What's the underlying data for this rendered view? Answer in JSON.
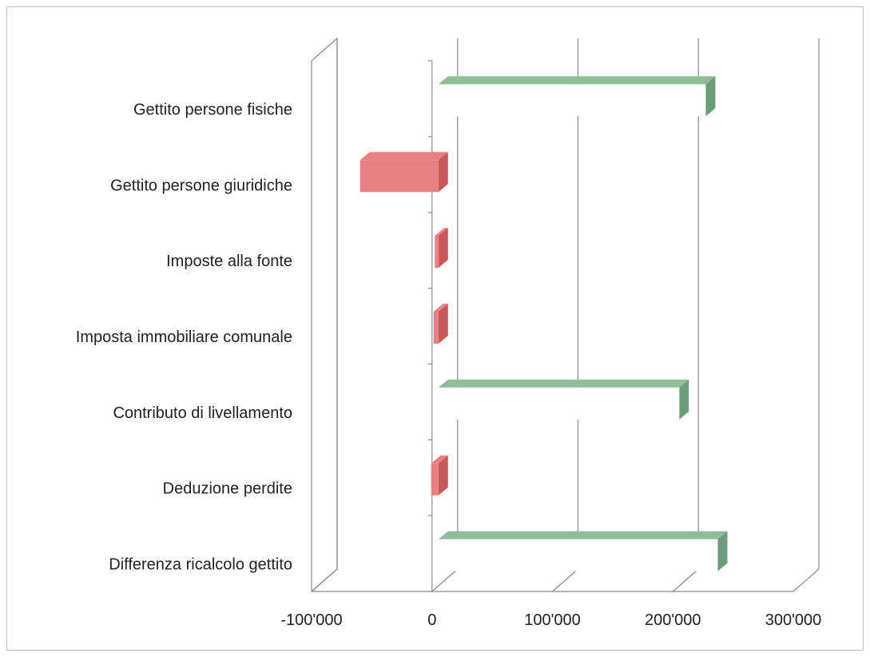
{
  "chart_data": {
    "type": "bar",
    "orientation": "horizontal",
    "style": "3d",
    "categories": [
      "Gettito persone fisiche",
      "Gettito persone giuridiche",
      "Imposte alla fonte",
      "Imposta immobiliare comunale",
      "Contributo di livellamento",
      "Deduzione perdite",
      "Differenza ricalcolo gettito"
    ],
    "values": [
      222000,
      -65000,
      -3000,
      -4000,
      200000,
      -6000,
      232000
    ],
    "xlim": [
      -100000,
      300000
    ],
    "xticks": [
      -100000,
      0,
      100000,
      200000,
      300000
    ],
    "xtick_labels": [
      "-100'000",
      "0",
      "100'000",
      "200'000",
      "300'000"
    ],
    "grid": true,
    "legend": "none",
    "colors": {
      "positive": "#8fbc9a",
      "negative": "#e87f82"
    }
  }
}
